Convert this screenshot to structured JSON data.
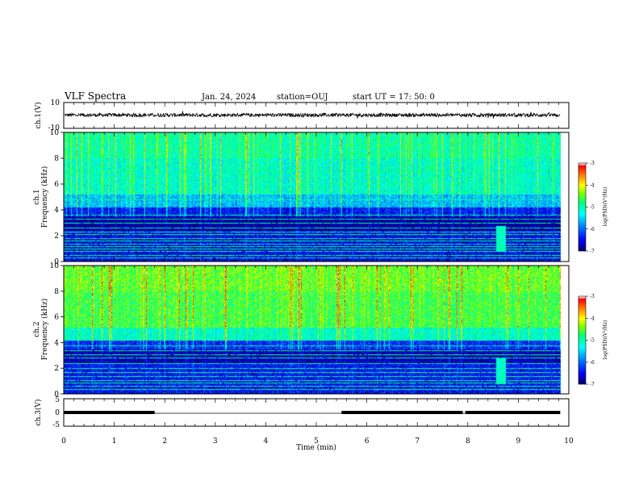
{
  "header": {
    "title": "VLF Spectra",
    "date": "Jan. 24, 2024",
    "station": "station=OUJ",
    "start": "start  UT  =   17: 50: 0"
  },
  "chart_data": [
    {
      "type": "line",
      "name": "ch1-waveform",
      "ylabel": "ch.1(V)",
      "ylim": [
        -10,
        10
      ],
      "yticks": [
        "10",
        "-10"
      ],
      "xlim": [
        0,
        10
      ],
      "data_end_min": 9.83,
      "level": 0.3,
      "color": "#000000"
    },
    {
      "type": "heatmap",
      "name": "ch1-spectrogram",
      "ylabel": "ch.1\nFrequency  (kHz)",
      "ylim": [
        0,
        10
      ],
      "yticks": [
        "0",
        "2",
        "4",
        "6",
        "8",
        "10"
      ],
      "xlim": [
        0,
        10
      ],
      "colorbar": {
        "label": "log(PSD)(V²/Hz)",
        "range": [
          -7,
          -3
        ],
        "ticks": [
          "-3",
          "-4",
          "-5",
          "-6",
          "-7"
        ],
        "colors": [
          "#000088",
          "#0000ff",
          "#00a0ff",
          "#00ffff",
          "#00ff80",
          "#80ff00",
          "#ffff00",
          "#ff8000",
          "#ff0000",
          "#ffffff"
        ]
      },
      "upper_band_level": -5.3,
      "lower_band_level": -6.6,
      "lines_khz": [
        0.3,
        0.5,
        0.8,
        1.0,
        1.2,
        1.4,
        1.6,
        1.8,
        2.1,
        2.3,
        2.6,
        3.0,
        3.3,
        3.6,
        4.8,
        7.0
      ],
      "burst_at_min": 8.65
    },
    {
      "type": "heatmap",
      "name": "ch2-spectrogram",
      "ylabel": "ch.2\nFrequency  (kHz)",
      "ylim": [
        0,
        10
      ],
      "yticks": [
        "0",
        "2",
        "4",
        "6",
        "8",
        "10"
      ],
      "xlim": [
        0,
        10
      ],
      "colorbar": {
        "label": "log(PSD)(V²/Hz)",
        "range": [
          -7,
          -3
        ],
        "ticks": [
          "-3",
          "-4",
          "-5",
          "-6",
          "-7"
        ]
      },
      "upper_band_level": -4.8,
      "lower_band_level": -6.5,
      "lines_khz": [
        0.4,
        0.6,
        0.9,
        1.1,
        1.4,
        1.7,
        2.0,
        2.4,
        2.8,
        3.1,
        3.4,
        3.8,
        4.2
      ],
      "burst_at_min": 8.65
    },
    {
      "type": "line",
      "name": "ch3-signal",
      "ylabel": "ch.3(V)",
      "ylim": [
        -5,
        5
      ],
      "yticks": [
        "5",
        "0",
        "-5"
      ],
      "xlim": [
        0,
        10
      ],
      "segments": [
        [
          0,
          1.8
        ],
        [
          5.5,
          7.9
        ],
        [
          7.95,
          9.83
        ]
      ],
      "level": 0,
      "color": "#000000"
    }
  ],
  "xaxis": {
    "label": "Time  (min)",
    "ticks": [
      "0",
      "1",
      "2",
      "3",
      "4",
      "5",
      "6",
      "7",
      "8",
      "9",
      "10"
    ]
  }
}
